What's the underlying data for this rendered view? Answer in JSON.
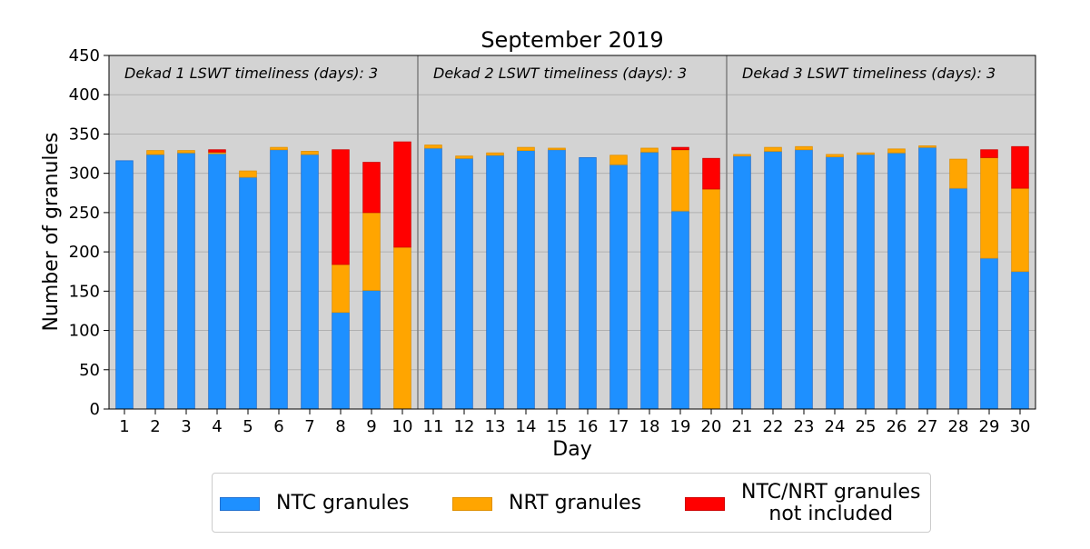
{
  "chart_data": {
    "type": "bar",
    "stacked": true,
    "title": "September 2019",
    "xlabel": "Day",
    "ylabel": "Number of granules",
    "ylim": [
      0,
      450
    ],
    "yticks": [
      0,
      50,
      100,
      150,
      200,
      250,
      300,
      350,
      400,
      450
    ],
    "grid": "horizontal",
    "background": "#d3d3d3",
    "categories": [
      "1",
      "2",
      "3",
      "4",
      "5",
      "6",
      "7",
      "8",
      "9",
      "10",
      "11",
      "12",
      "13",
      "14",
      "15",
      "16",
      "17",
      "18",
      "19",
      "20",
      "21",
      "22",
      "23",
      "24",
      "25",
      "26",
      "27",
      "28",
      "29",
      "30"
    ],
    "series": [
      {
        "name": "NTC granules",
        "color": "#1e90ff",
        "values": [
          316,
          324,
          326,
          325,
          295,
          330,
          324,
          123,
          151,
          0,
          332,
          319,
          323,
          329,
          330,
          320,
          311,
          327,
          252,
          0,
          322,
          328,
          330,
          321,
          324,
          326,
          333,
          281,
          192,
          175
        ]
      },
      {
        "name": "NRT granules",
        "color": "#ffa500",
        "values": [
          0,
          5,
          3,
          2,
          8,
          3,
          4,
          61,
          99,
          206,
          4,
          3,
          3,
          4,
          2,
          0,
          12,
          5,
          78,
          280,
          2,
          5,
          4,
          3,
          2,
          5,
          2,
          37,
          128,
          106
        ]
      },
      {
        "name": "NTC/NRT granules not included",
        "legend_lines": [
          "NTC/NRT granules",
          "not included"
        ],
        "color": "#ff0000",
        "values": [
          0,
          0,
          0,
          3,
          0,
          0,
          0,
          146,
          64,
          134,
          0,
          0,
          0,
          0,
          0,
          0,
          0,
          0,
          3,
          39,
          0,
          0,
          0,
          0,
          0,
          0,
          0,
          0,
          10,
          53
        ]
      }
    ],
    "dividers_after": [
      "10",
      "20"
    ],
    "annotations": [
      "Dekad 1 LSWT timeliness (days): 3",
      "Dekad 2 LSWT timeliness (days): 3",
      "Dekad 3 LSWT timeliness (days): 3"
    ],
    "legend_position": "bottom-center"
  }
}
